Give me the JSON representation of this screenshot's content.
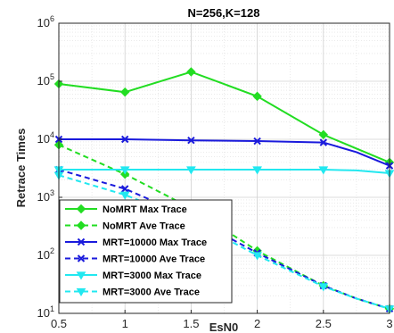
{
  "chart_data": {
    "type": "line",
    "title": "N=256,K=128",
    "xlabel": "EsN0",
    "ylabel": "Retrace Times",
    "xlim": [
      0.5,
      3
    ],
    "ylim": [
      10,
      1000000
    ],
    "yscale": "log",
    "x_ticks": [
      "0.5",
      "1",
      "1.5",
      "2",
      "2.5",
      "3"
    ],
    "grid": true,
    "legend_position": "lower-left",
    "series": [
      {
        "name": "NoMRT Max Trace",
        "color": "#22dd22",
        "dash": "solid",
        "marker": "diamond",
        "x": [
          0.5,
          1,
          1.5,
          2,
          2.5,
          3
        ],
        "y": [
          90000,
          65000,
          145000,
          55000,
          12000,
          4000
        ]
      },
      {
        "name": "NoMRT Ave Trace",
        "color": "#22dd22",
        "dash": "dashed",
        "marker": "diamond",
        "x": [
          0.5,
          1,
          1.5,
          2,
          2.5,
          2.75,
          3
        ],
        "y": [
          8000,
          2500,
          650,
          120,
          30,
          18,
          12
        ]
      },
      {
        "name": "MRT=10000 Max Trace",
        "color": "#1a1adc",
        "dash": "solid",
        "marker": "x",
        "x": [
          0.5,
          1,
          1.5,
          2,
          2.5,
          2.75,
          3
        ],
        "y": [
          10000,
          10000,
          9600,
          9300,
          8800,
          6000,
          3500
        ]
      },
      {
        "name": "MRT=10000 Ave Trace",
        "color": "#1a1adc",
        "dash": "dashed",
        "marker": "x",
        "x": [
          0.5,
          1,
          1.5,
          2,
          2.5,
          2.75,
          3
        ],
        "y": [
          3000,
          1400,
          450,
          110,
          30,
          18,
          12
        ]
      },
      {
        "name": "MRT=3000 Max Trace",
        "color": "#22e8f0",
        "dash": "solid",
        "marker": "triangle-down",
        "x": [
          0.5,
          1,
          1.5,
          2,
          2.5,
          2.75,
          3
        ],
        "y": [
          3000,
          3000,
          3000,
          3000,
          3000,
          2900,
          2600
        ]
      },
      {
        "name": "MRT=3000 Ave Trace",
        "color": "#22e8f0",
        "dash": "dashed",
        "marker": "triangle-down",
        "x": [
          0.5,
          1,
          1.5,
          2,
          2.5,
          2.75,
          3
        ],
        "y": [
          2400,
          1100,
          400,
          100,
          29,
          18,
          12
        ]
      }
    ]
  }
}
